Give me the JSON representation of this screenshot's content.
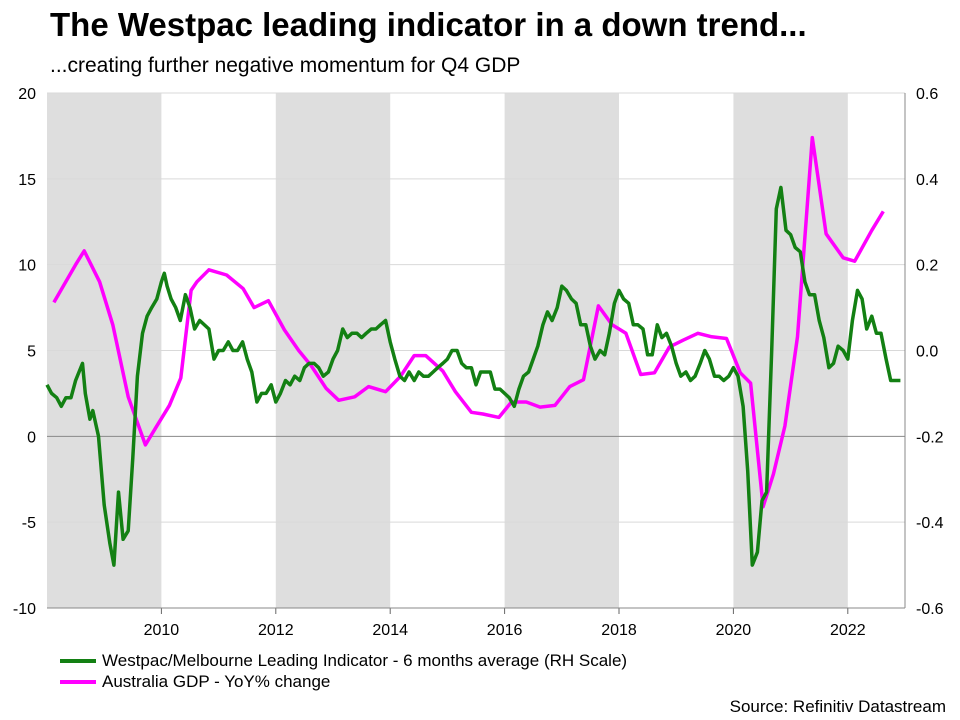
{
  "title": "The Westpac leading indicator in a down trend...",
  "subtitle": "...creating further negative momentum for Q4 GDP",
  "source": "Source: Refinitiv Datastream",
  "colors": {
    "gdp": "#ff00ff",
    "wli": "#138013",
    "shade": "#dedede",
    "grid": "#d9d9d9"
  },
  "chart_data": {
    "type": "line",
    "x_range": [
      2008.0,
      2023.0
    ],
    "x_ticks": [
      "2010",
      "2012",
      "2014",
      "2016",
      "2018",
      "2020",
      "2022"
    ],
    "x_tick_values": [
      2010,
      2012,
      2014,
      2016,
      2018,
      2020,
      2022
    ],
    "left_axis": {
      "range": [
        -10,
        20
      ],
      "ticks": [
        "20",
        "15",
        "10",
        "5",
        "0",
        "-5",
        "-10"
      ],
      "tick_values": [
        20,
        15,
        10,
        5,
        0,
        -5,
        -10
      ]
    },
    "right_axis": {
      "range": [
        -0.6,
        0.6
      ],
      "ticks": [
        "0.6",
        "0.4",
        "0.2",
        "0.0",
        "-0.2",
        "-0.4",
        "-0.6"
      ],
      "tick_values": [
        0.6,
        0.4,
        0.2,
        0.0,
        -0.2,
        -0.4,
        -0.6
      ]
    },
    "shaded_periods": [
      [
        2008.0,
        2010.0
      ],
      [
        2012.0,
        2014.0
      ],
      [
        2016.0,
        2018.0
      ],
      [
        2020.0,
        2022.0
      ]
    ],
    "series": [
      {
        "name": "Westpac/Melbourne Leading Indicator - 6 months average (RH Scale)",
        "axis": "right",
        "points": [
          [
            2008.0,
            -0.08
          ],
          [
            2008.08,
            -0.1
          ],
          [
            2008.17,
            -0.11
          ],
          [
            2008.25,
            -0.13
          ],
          [
            2008.33,
            -0.11
          ],
          [
            2008.42,
            -0.11
          ],
          [
            2008.5,
            -0.07
          ],
          [
            2008.62,
            -0.03
          ],
          [
            2008.67,
            -0.1
          ],
          [
            2008.75,
            -0.16
          ],
          [
            2008.8,
            -0.14
          ],
          [
            2008.9,
            -0.2
          ],
          [
            2009.0,
            -0.36
          ],
          [
            2009.1,
            -0.45
          ],
          [
            2009.17,
            -0.5
          ],
          [
            2009.25,
            -0.33
          ],
          [
            2009.33,
            -0.44
          ],
          [
            2009.42,
            -0.42
          ],
          [
            2009.5,
            -0.25
          ],
          [
            2009.58,
            -0.06
          ],
          [
            2009.67,
            0.04
          ],
          [
            2009.75,
            0.08
          ],
          [
            2009.83,
            0.1
          ],
          [
            2009.92,
            0.12
          ],
          [
            2010.0,
            0.16
          ],
          [
            2010.05,
            0.18
          ],
          [
            2010.1,
            0.15
          ],
          [
            2010.17,
            0.12
          ],
          [
            2010.25,
            0.1
          ],
          [
            2010.33,
            0.07
          ],
          [
            2010.42,
            0.13
          ],
          [
            2010.5,
            0.1
          ],
          [
            2010.58,
            0.05
          ],
          [
            2010.67,
            0.07
          ],
          [
            2010.83,
            0.05
          ],
          [
            2010.92,
            -0.02
          ],
          [
            2011.0,
            0.0
          ],
          [
            2011.08,
            0.0
          ],
          [
            2011.17,
            0.02
          ],
          [
            2011.25,
            0.0
          ],
          [
            2011.33,
            0.0
          ],
          [
            2011.42,
            0.02
          ],
          [
            2011.5,
            -0.02
          ],
          [
            2011.58,
            -0.05
          ],
          [
            2011.67,
            -0.12
          ],
          [
            2011.75,
            -0.1
          ],
          [
            2011.83,
            -0.1
          ],
          [
            2011.92,
            -0.08
          ],
          [
            2012.0,
            -0.12
          ],
          [
            2012.08,
            -0.1
          ],
          [
            2012.17,
            -0.07
          ],
          [
            2012.25,
            -0.08
          ],
          [
            2012.33,
            -0.06
          ],
          [
            2012.42,
            -0.07
          ],
          [
            2012.5,
            -0.04
          ],
          [
            2012.58,
            -0.03
          ],
          [
            2012.67,
            -0.03
          ],
          [
            2012.75,
            -0.04
          ],
          [
            2012.83,
            -0.06
          ],
          [
            2012.92,
            -0.05
          ],
          [
            2013.0,
            -0.02
          ],
          [
            2013.08,
            0.0
          ],
          [
            2013.17,
            0.05
          ],
          [
            2013.25,
            0.03
          ],
          [
            2013.33,
            0.04
          ],
          [
            2013.42,
            0.04
          ],
          [
            2013.5,
            0.03
          ],
          [
            2013.58,
            0.04
          ],
          [
            2013.67,
            0.05
          ],
          [
            2013.75,
            0.05
          ],
          [
            2013.83,
            0.06
          ],
          [
            2013.92,
            0.07
          ],
          [
            2014.0,
            0.02
          ],
          [
            2014.08,
            -0.02
          ],
          [
            2014.17,
            -0.06
          ],
          [
            2014.25,
            -0.07
          ],
          [
            2014.33,
            -0.05
          ],
          [
            2014.42,
            -0.07
          ],
          [
            2014.5,
            -0.05
          ],
          [
            2014.58,
            -0.06
          ],
          [
            2014.67,
            -0.06
          ],
          [
            2014.75,
            -0.05
          ],
          [
            2014.83,
            -0.04
          ],
          [
            2014.92,
            -0.03
          ],
          [
            2015.0,
            -0.02
          ],
          [
            2015.08,
            0.0
          ],
          [
            2015.17,
            0.0
          ],
          [
            2015.25,
            -0.03
          ],
          [
            2015.33,
            -0.04
          ],
          [
            2015.42,
            -0.04
          ],
          [
            2015.5,
            -0.08
          ],
          [
            2015.58,
            -0.05
          ],
          [
            2015.67,
            -0.05
          ],
          [
            2015.75,
            -0.05
          ],
          [
            2015.83,
            -0.09
          ],
          [
            2015.92,
            -0.09
          ],
          [
            2016.0,
            -0.1
          ],
          [
            2016.08,
            -0.11
          ],
          [
            2016.17,
            -0.13
          ],
          [
            2016.25,
            -0.09
          ],
          [
            2016.33,
            -0.06
          ],
          [
            2016.42,
            -0.05
          ],
          [
            2016.5,
            -0.02
          ],
          [
            2016.58,
            0.01
          ],
          [
            2016.67,
            0.06
          ],
          [
            2016.75,
            0.09
          ],
          [
            2016.83,
            0.07
          ],
          [
            2016.92,
            0.1
          ],
          [
            2017.0,
            0.15
          ],
          [
            2017.08,
            0.14
          ],
          [
            2017.17,
            0.12
          ],
          [
            2017.25,
            0.11
          ],
          [
            2017.33,
            0.06
          ],
          [
            2017.42,
            0.06
          ],
          [
            2017.5,
            0.01
          ],
          [
            2017.58,
            -0.02
          ],
          [
            2017.67,
            0.0
          ],
          [
            2017.75,
            -0.01
          ],
          [
            2017.83,
            0.04
          ],
          [
            2017.92,
            0.11
          ],
          [
            2018.0,
            0.14
          ],
          [
            2018.08,
            0.12
          ],
          [
            2018.17,
            0.11
          ],
          [
            2018.25,
            0.06
          ],
          [
            2018.33,
            0.06
          ],
          [
            2018.42,
            0.05
          ],
          [
            2018.5,
            -0.01
          ],
          [
            2018.58,
            -0.01
          ],
          [
            2018.67,
            0.06
          ],
          [
            2018.75,
            0.03
          ],
          [
            2018.83,
            0.04
          ],
          [
            2018.92,
            0.01
          ],
          [
            2019.0,
            -0.03
          ],
          [
            2019.08,
            -0.06
          ],
          [
            2019.17,
            -0.05
          ],
          [
            2019.25,
            -0.07
          ],
          [
            2019.33,
            -0.06
          ],
          [
            2019.42,
            -0.03
          ],
          [
            2019.5,
            0.0
          ],
          [
            2019.58,
            -0.02
          ],
          [
            2019.67,
            -0.06
          ],
          [
            2019.75,
            -0.06
          ],
          [
            2019.83,
            -0.07
          ],
          [
            2019.92,
            -0.06
          ],
          [
            2020.0,
            -0.04
          ],
          [
            2020.08,
            -0.06
          ],
          [
            2020.17,
            -0.13
          ],
          [
            2020.25,
            -0.28
          ],
          [
            2020.33,
            -0.5
          ],
          [
            2020.42,
            -0.47
          ],
          [
            2020.5,
            -0.35
          ],
          [
            2020.58,
            -0.33
          ],
          [
            2020.67,
            0.0
          ],
          [
            2020.75,
            0.33
          ],
          [
            2020.83,
            0.38
          ],
          [
            2020.92,
            0.28
          ],
          [
            2021.0,
            0.27
          ],
          [
            2021.08,
            0.24
          ],
          [
            2021.17,
            0.23
          ],
          [
            2021.25,
            0.16
          ],
          [
            2021.33,
            0.13
          ],
          [
            2021.42,
            0.13
          ],
          [
            2021.5,
            0.07
          ],
          [
            2021.58,
            0.03
          ],
          [
            2021.67,
            -0.04
          ],
          [
            2021.75,
            -0.03
          ],
          [
            2021.83,
            0.01
          ],
          [
            2021.92,
            0.0
          ],
          [
            2022.0,
            -0.02
          ],
          [
            2022.08,
            0.07
          ],
          [
            2022.17,
            0.14
          ],
          [
            2022.25,
            0.12
          ],
          [
            2022.33,
            0.05
          ],
          [
            2022.42,
            0.08
          ],
          [
            2022.5,
            0.04
          ],
          [
            2022.58,
            0.04
          ],
          [
            2022.67,
            -0.02
          ],
          [
            2022.75,
            -0.07
          ],
          [
            2022.83,
            -0.07
          ],
          [
            2022.92,
            -0.07
          ]
        ]
      },
      {
        "name": "Australia GDP - YoY% change",
        "axis": "left",
        "points": [
          [
            2008.12,
            7.8
          ],
          [
            2008.5,
            10.0
          ],
          [
            2008.65,
            10.8
          ],
          [
            2008.92,
            9.0
          ],
          [
            2009.15,
            6.5
          ],
          [
            2009.42,
            2.3
          ],
          [
            2009.72,
            -0.5
          ],
          [
            2009.9,
            0.5
          ],
          [
            2010.14,
            1.8
          ],
          [
            2010.34,
            3.4
          ],
          [
            2010.52,
            8.5
          ],
          [
            2010.62,
            9.0
          ],
          [
            2010.83,
            9.7
          ],
          [
            2011.14,
            9.4
          ],
          [
            2011.43,
            8.6
          ],
          [
            2011.62,
            7.5
          ],
          [
            2011.87,
            7.9
          ],
          [
            2012.15,
            6.2
          ],
          [
            2012.4,
            5.0
          ],
          [
            2012.62,
            4.1
          ],
          [
            2012.88,
            2.8
          ],
          [
            2013.1,
            2.1
          ],
          [
            2013.38,
            2.3
          ],
          [
            2013.62,
            2.9
          ],
          [
            2013.92,
            2.6
          ],
          [
            2014.18,
            3.5
          ],
          [
            2014.42,
            4.7
          ],
          [
            2014.62,
            4.7
          ],
          [
            2014.92,
            3.8
          ],
          [
            2015.14,
            2.6
          ],
          [
            2015.42,
            1.4
          ],
          [
            2015.62,
            1.3
          ],
          [
            2015.9,
            1.1
          ],
          [
            2016.12,
            2.0
          ],
          [
            2016.38,
            2.0
          ],
          [
            2016.62,
            1.7
          ],
          [
            2016.88,
            1.8
          ],
          [
            2017.14,
            2.9
          ],
          [
            2017.38,
            3.3
          ],
          [
            2017.64,
            7.6
          ],
          [
            2017.88,
            6.5
          ],
          [
            2018.12,
            6.0
          ],
          [
            2018.38,
            3.6
          ],
          [
            2018.62,
            3.7
          ],
          [
            2018.88,
            5.2
          ],
          [
            2019.12,
            5.6
          ],
          [
            2019.38,
            6.0
          ],
          [
            2019.62,
            5.8
          ],
          [
            2019.88,
            5.7
          ],
          [
            2020.12,
            3.7
          ],
          [
            2020.3,
            3.1
          ],
          [
            2020.52,
            -4.1
          ],
          [
            2020.7,
            -2.2
          ],
          [
            2020.9,
            0.6
          ],
          [
            2021.12,
            5.8
          ],
          [
            2021.38,
            17.4
          ],
          [
            2021.62,
            11.8
          ],
          [
            2021.92,
            10.4
          ],
          [
            2022.12,
            10.2
          ],
          [
            2022.42,
            12.0
          ],
          [
            2022.62,
            13.1
          ]
        ]
      }
    ]
  }
}
